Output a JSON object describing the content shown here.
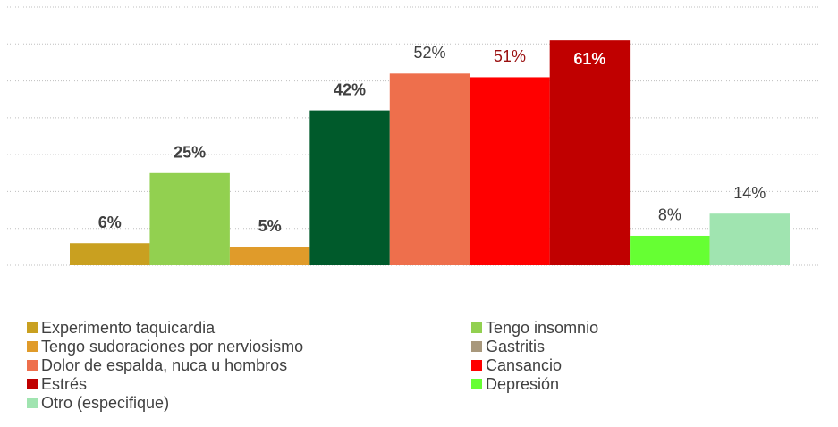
{
  "chart_data": {
    "type": "bar",
    "series": [
      {
        "name": "Experimento taquicardia",
        "color": "#c9a020",
        "label_color": "#404040",
        "values": [
          6
        ],
        "value_labels": [
          "6%"
        ]
      },
      {
        "name": "Tengo insomnio",
        "color": "#92d050",
        "label_color": "#404040",
        "values": [
          25
        ],
        "value_labels": [
          "25%"
        ]
      },
      {
        "name": "Tengo sudoraciones por nerviosismo",
        "color": "#e09b2a",
        "label_color": "#404040",
        "values": [
          5
        ],
        "value_labels": [
          "5%"
        ]
      },
      {
        "name": "Gastritis",
        "color": "#005a2b",
        "marker_color": "#a8987c",
        "label_color": "#404040",
        "values": [
          42
        ],
        "value_labels": [
          "42%"
        ]
      },
      {
        "name": "Dolor de espalda, nuca u hombros",
        "color": "#ee6f4c",
        "label_color": "#404040",
        "values": [
          52
        ],
        "value_labels": [
          "52%"
        ]
      },
      {
        "name": "Cansancio",
        "color": "#ff0000",
        "label_color": "#9a1010",
        "values": [
          51
        ],
        "value_labels": [
          "51%"
        ]
      },
      {
        "name": "Estrés",
        "color": "#c00000",
        "label_color": "#ffffff",
        "values": [
          61
        ],
        "value_labels": [
          "61%"
        ]
      },
      {
        "name": "Depresión",
        "color": "#66ff33",
        "label_color": "#404040",
        "values": [
          8
        ],
        "value_labels": [
          "8%"
        ]
      },
      {
        "name": "Otro (especifique)",
        "color": "#a0e4b0",
        "label_color": "#404040",
        "values": [
          14
        ],
        "value_labels": [
          "14%"
        ]
      }
    ],
    "ylim": [
      0,
      70
    ],
    "yticks": [
      0,
      10,
      20,
      30,
      40,
      50,
      60,
      70
    ],
    "grid": true,
    "legend": "bottom"
  }
}
